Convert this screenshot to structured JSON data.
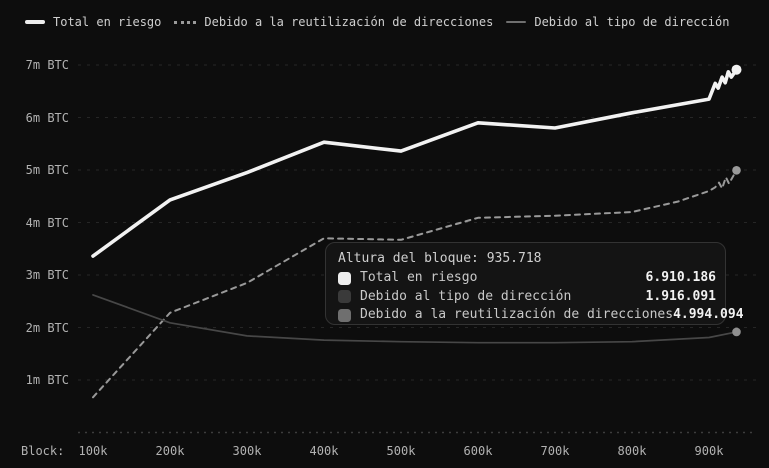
{
  "legend": {
    "items": [
      {
        "label": "Total en riesgo",
        "swatch": "solid-thick-line",
        "color": "#ededed"
      },
      {
        "label": "Debido a la reutilización de direcciones",
        "swatch": "dotted-line",
        "color": "#9a9a9a"
      },
      {
        "label": "Debido al tipo de dirección",
        "swatch": "solid-thin-line",
        "color": "#6f6f6f"
      }
    ]
  },
  "tooltip": {
    "title": "Altura del bloque: 935.718",
    "rows": [
      {
        "label": "Total en riesgo",
        "value": "6.910.186",
        "swatch_color": "#ededed"
      },
      {
        "label": "Debido al tipo de dirección",
        "value": "1.916.091",
        "swatch_color": "#3a3a3a"
      },
      {
        "label": "Debido a la reutilización de direcciones",
        "value": "4.994.094",
        "swatch_color": "#6f6f6f"
      }
    ]
  },
  "axes": {
    "x_prefix": "Block:",
    "x_ticks": [
      {
        "label": "100k",
        "value": 100000
      },
      {
        "label": "200k",
        "value": 200000
      },
      {
        "label": "300k",
        "value": 300000
      },
      {
        "label": "400k",
        "value": 400000
      },
      {
        "label": "500k",
        "value": 500000
      },
      {
        "label": "600k",
        "value": 600000
      },
      {
        "label": "700k",
        "value": 700000
      },
      {
        "label": "800k",
        "value": 800000
      },
      {
        "label": "900k",
        "value": 900000
      }
    ],
    "y_ticks": [
      {
        "label": "1m BTC",
        "value": 1000000
      },
      {
        "label": "2m BTC",
        "value": 2000000
      },
      {
        "label": "3m BTC",
        "value": 3000000
      },
      {
        "label": "4m BTC",
        "value": 4000000
      },
      {
        "label": "5m BTC",
        "value": 5000000
      },
      {
        "label": "6m BTC",
        "value": 6000000
      },
      {
        "label": "7m BTC",
        "value": 7000000
      }
    ]
  },
  "chart_data": {
    "type": "line",
    "title": "",
    "xlabel": "Block",
    "ylabel": "BTC",
    "xlim": [
      100000,
      936000
    ],
    "ylim": [
      0,
      7400000
    ],
    "grid": "horizontal-dashed",
    "legend_position": "top",
    "highlight_block": 935718,
    "series": [
      {
        "name": "Total en riesgo",
        "style": "solid",
        "color": "#f2f2f2",
        "dot_color": "#f2f2f2",
        "width": 3.6,
        "points": [
          [
            100000,
            3360000
          ],
          [
            200000,
            4430000
          ],
          [
            300000,
            4950000
          ],
          [
            400000,
            5530000
          ],
          [
            500000,
            5360000
          ],
          [
            600000,
            5900000
          ],
          [
            700000,
            5800000
          ],
          [
            800000,
            6090000
          ],
          [
            900000,
            6350000
          ],
          [
            908000,
            6650000
          ],
          [
            912000,
            6560000
          ],
          [
            917000,
            6770000
          ],
          [
            921000,
            6660000
          ],
          [
            925000,
            6870000
          ],
          [
            929000,
            6770000
          ],
          [
            935718,
            6910186
          ]
        ]
      },
      {
        "name": "Debido a la reutilización de direcciones",
        "style": "dashed",
        "color": "#999999",
        "dot_color": "#9a9a9a",
        "width": 2,
        "points": [
          [
            100000,
            670000
          ],
          [
            200000,
            2280000
          ],
          [
            300000,
            2850000
          ],
          [
            400000,
            3700000
          ],
          [
            500000,
            3670000
          ],
          [
            600000,
            4090000
          ],
          [
            700000,
            4130000
          ],
          [
            800000,
            4200000
          ],
          [
            860000,
            4400000
          ],
          [
            900000,
            4600000
          ],
          [
            908000,
            4670000
          ],
          [
            913000,
            4760000
          ],
          [
            917000,
            4650000
          ],
          [
            922000,
            4860000
          ],
          [
            926000,
            4740000
          ],
          [
            935718,
            4994094
          ]
        ]
      },
      {
        "name": "Debido al tipo de dirección",
        "style": "solid",
        "color": "#474747",
        "dot_color": "#8f8f8f",
        "width": 1.7,
        "points": [
          [
            100000,
            2620000
          ],
          [
            200000,
            2090000
          ],
          [
            300000,
            1840000
          ],
          [
            400000,
            1760000
          ],
          [
            500000,
            1730000
          ],
          [
            600000,
            1710000
          ],
          [
            700000,
            1710000
          ],
          [
            800000,
            1730000
          ],
          [
            900000,
            1810000
          ],
          [
            935718,
            1916091
          ]
        ]
      }
    ]
  }
}
